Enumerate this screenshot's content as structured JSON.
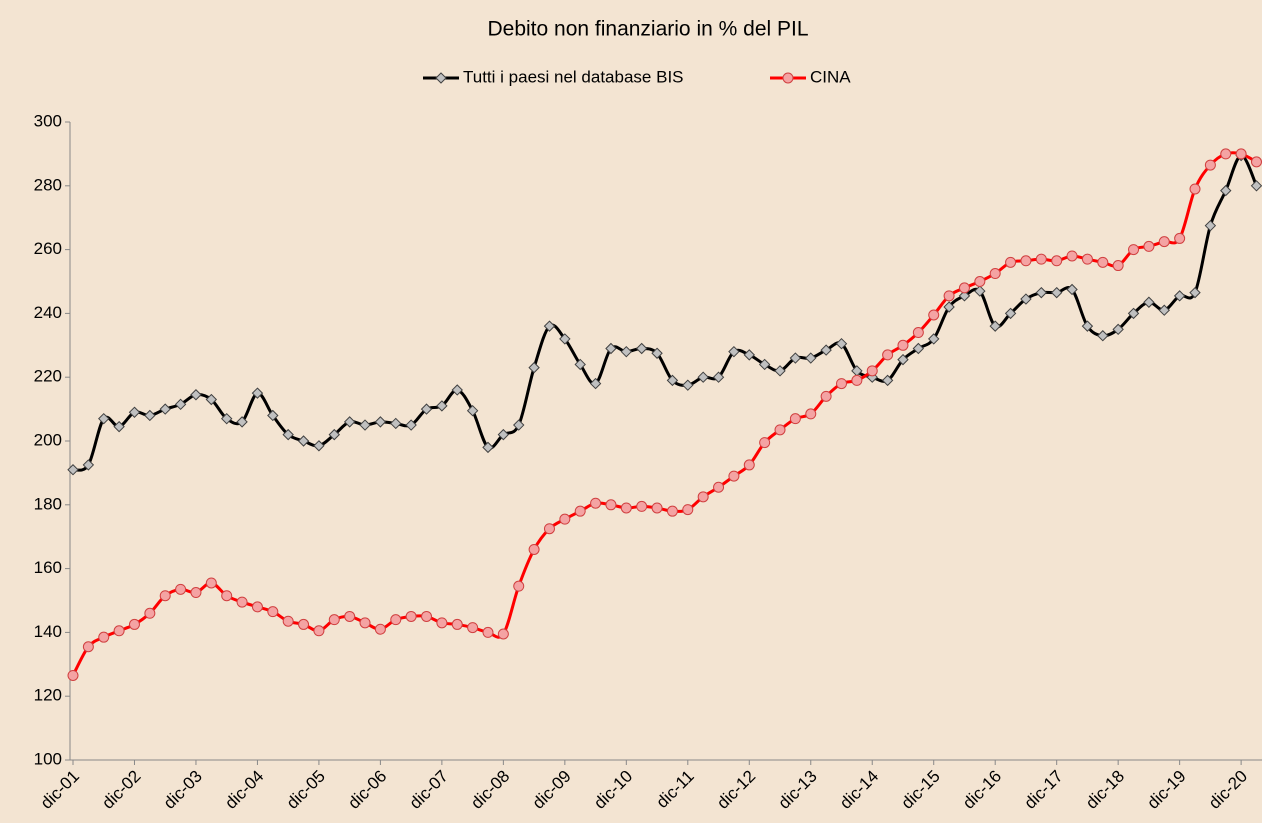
{
  "chart_data": {
    "type": "line",
    "title": "Debito non finanziario in % del PIL",
    "categories": [
      "dic-01",
      null,
      null,
      null,
      "dic-02",
      null,
      null,
      null,
      "dic-03",
      null,
      null,
      null,
      "dic-04",
      null,
      null,
      null,
      "dic-05",
      null,
      null,
      null,
      "dic-06",
      null,
      null,
      null,
      "dic-07",
      null,
      null,
      null,
      "dic-08",
      null,
      null,
      null,
      "dic-09",
      null,
      null,
      null,
      "dic-10",
      null,
      null,
      null,
      "dic-11",
      null,
      null,
      null,
      "dic-12",
      null,
      null,
      null,
      "dic-13",
      null,
      null,
      null,
      "dic-14",
      null,
      null,
      null,
      "dic-15",
      null,
      null,
      null,
      "dic-16",
      null,
      null,
      null,
      "dic-17",
      null,
      null,
      null,
      "dic-18",
      null,
      null,
      null,
      "dic-19",
      null,
      null,
      null,
      "dic-20",
      null
    ],
    "series": [
      {
        "name": "Tutti i paesi nel database BIS",
        "color": "#000000",
        "marker": "diamond",
        "marker_color": "#c0c0c0",
        "values": [
          191,
          192.5,
          207,
          204.5,
          209,
          208,
          210,
          211.5,
          214.5,
          213,
          207,
          206,
          215,
          208,
          202,
          200,
          198.5,
          202,
          206,
          205,
          206,
          205.5,
          205,
          210,
          211,
          216,
          209.5,
          198,
          202,
          205,
          223,
          236,
          232,
          224,
          218,
          229,
          228,
          229,
          227.5,
          219,
          217.5,
          220,
          220,
          228,
          227,
          224,
          222,
          226,
          226,
          228.5,
          230.5,
          222,
          220,
          219,
          225.5,
          229,
          232,
          242,
          245.5,
          247,
          236,
          240,
          244.5,
          246.5,
          246.5,
          247.5,
          236,
          233,
          235,
          240,
          243.5,
          241,
          245.5,
          246.5,
          267.5,
          278.5,
          289.5,
          280
        ]
      },
      {
        "name": "CINA",
        "color": "#ff0000",
        "marker": "circle",
        "marker_color": "#f4a3a3",
        "values": [
          126.5,
          135.5,
          138.5,
          140.5,
          142.5,
          146,
          151.5,
          153.5,
          152.5,
          155.5,
          151.5,
          149.5,
          148,
          146.5,
          143.5,
          142.5,
          140.5,
          144,
          145,
          143,
          141,
          144,
          145,
          145,
          143,
          142.5,
          141.5,
          140,
          139.5,
          154.5,
          166,
          172.5,
          175.5,
          178,
          180.5,
          180,
          179,
          179.5,
          179,
          178,
          178.5,
          182.5,
          185.5,
          189,
          192.5,
          199.5,
          203.5,
          207,
          208.5,
          214,
          218,
          219,
          222,
          227,
          230,
          234,
          239.5,
          245.5,
          248,
          250,
          252.5,
          256,
          256.5,
          257,
          256.5,
          258,
          257,
          256,
          255,
          260,
          261,
          262.5,
          263.5,
          279,
          286.5,
          290,
          290,
          287.5
        ]
      }
    ],
    "ylim": [
      100,
      300
    ],
    "yticks": [
      100,
      120,
      140,
      160,
      180,
      200,
      220,
      240,
      260,
      280,
      300
    ],
    "grid": false,
    "legend": "top",
    "smooth": true
  }
}
